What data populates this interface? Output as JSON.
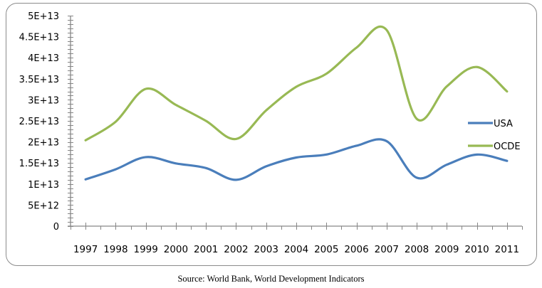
{
  "chart_data": {
    "type": "line",
    "title": "",
    "xlabel": "",
    "ylabel": "",
    "categories": [
      "1997",
      "1998",
      "1999",
      "2000",
      "2001",
      "2002",
      "2003",
      "2004",
      "2005",
      "2006",
      "2007",
      "2008",
      "2009",
      "2010",
      "2011"
    ],
    "series": [
      {
        "name": "USA",
        "color": "#4a7ebb",
        "values": [
          11100000000000.0,
          13500000000000.0,
          16400000000000.0,
          14900000000000.0,
          13800000000000.0,
          11000000000000.0,
          14200000000000.0,
          16300000000000.0,
          17000000000000.0,
          19100000000000.0,
          20200000000000.0,
          11500000000000.0,
          14600000000000.0,
          17000000000000.0,
          15500000000000.0
        ]
      },
      {
        "name": "OCDE",
        "color": "#98b954",
        "values": [
          20400000000000.0,
          24800000000000.0,
          32600000000000.0,
          28800000000000.0,
          25000000000000.0,
          20700000000000.0,
          27500000000000.0,
          33100000000000.0,
          36200000000000.0,
          42400000000000.0,
          46600000000000.0,
          25500000000000.0,
          33200000000000.0,
          37800000000000.0,
          32000000000000.0
        ]
      }
    ],
    "ylim": [
      0,
      50000000000000.0
    ],
    "yticks": [
      0,
      5000000000000.0,
      10000000000000.0,
      15000000000000.0,
      20000000000000.0,
      25000000000000.0,
      30000000000000.0,
      35000000000000.0,
      40000000000000.0,
      45000000000000.0,
      50000000000000.0
    ],
    "ytick_labels": [
      "0",
      "5E+12",
      "1E+13",
      "1.5E+13",
      "2E+13",
      "2.5E+13",
      "3E+13",
      "3.5E+13",
      "4E+13",
      "4.5E+13",
      "5E+13"
    ],
    "grid": false,
    "smoothed": true,
    "legend": {
      "position": "right",
      "entries": [
        "USA",
        "OCDE"
      ]
    }
  },
  "caption": "Source: World Bank, World Development Indicators"
}
